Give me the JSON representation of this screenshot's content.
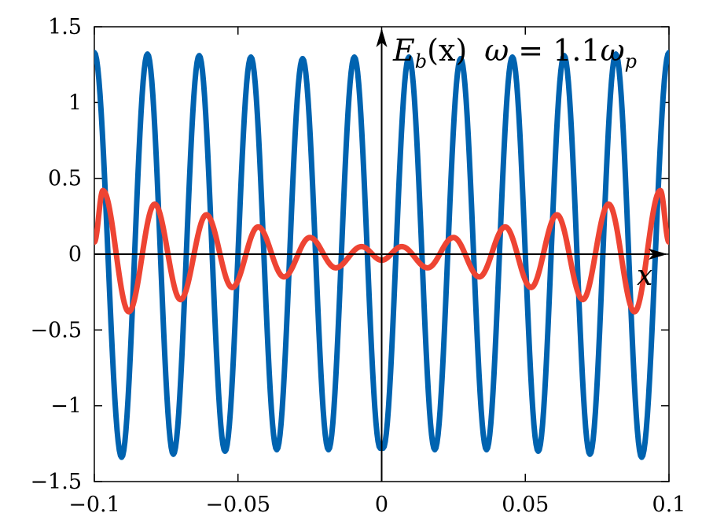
{
  "chart_data": {
    "type": "line",
    "annotation": {
      "main": "E",
      "sub": "b",
      "arg": "(x)",
      "omega_lhs": "ω",
      "eq": " = ",
      "coef": "1.1",
      "omega_rhs": "ω",
      "omega_sub": "p"
    },
    "axis_x_label": "x",
    "xlim": [
      -0.1,
      0.1
    ],
    "ylim": [
      -1.5,
      1.5
    ],
    "x_ticks": [
      -0.1,
      -0.05,
      0,
      0.05,
      0.1
    ],
    "x_tick_labels": [
      "−0.1",
      "−0.05",
      "0",
      "0.05",
      "0.1"
    ],
    "y_ticks": [
      1.5,
      1,
      0.5,
      0,
      -0.5,
      -1,
      -1.5
    ],
    "y_tick_labels": [
      "1.5",
      "1",
      "0.5",
      "0",
      "−0.5",
      "−1",
      "−1.5"
    ],
    "grid": false,
    "series": [
      {
        "color": "#0063b0",
        "x": [
          -0.1,
          -0.0905,
          -0.0815,
          -0.0725,
          -0.0635,
          -0.0545,
          -0.0455,
          -0.0365,
          -0.0275,
          -0.0185,
          -0.0095,
          -0.0005,
          0.0005,
          0.0095,
          0.0185,
          0.0275,
          0.0365,
          0.0455,
          0.0545,
          0.0635,
          0.0725,
          0.0815,
          0.0905,
          0.1
        ],
        "y": [
          1.33,
          -1.34,
          1.32,
          -1.32,
          1.31,
          -1.3,
          1.3,
          -1.29,
          1.29,
          -1.29,
          1.3,
          -1.28,
          -1.28,
          1.3,
          -1.29,
          1.29,
          -1.29,
          1.3,
          -1.3,
          1.31,
          -1.32,
          1.32,
          -1.34,
          1.33
        ]
      },
      {
        "color": "#ee4433",
        "x": [
          -0.1,
          -0.097,
          -0.088,
          -0.079,
          -0.07,
          -0.061,
          -0.052,
          -0.043,
          -0.034,
          -0.025,
          -0.016,
          -0.007,
          0,
          0.007,
          0.016,
          0.025,
          0.034,
          0.043,
          0.052,
          0.061,
          0.07,
          0.079,
          0.088,
          0.097,
          0.1
        ],
        "y": [
          0.08,
          0.42,
          -0.38,
          0.33,
          -0.3,
          0.26,
          -0.22,
          0.18,
          -0.15,
          0.11,
          -0.09,
          0.05,
          -0.04,
          0.05,
          -0.09,
          0.11,
          -0.15,
          0.18,
          -0.22,
          0.26,
          -0.3,
          0.33,
          -0.38,
          0.42,
          0.08
        ]
      }
    ]
  }
}
